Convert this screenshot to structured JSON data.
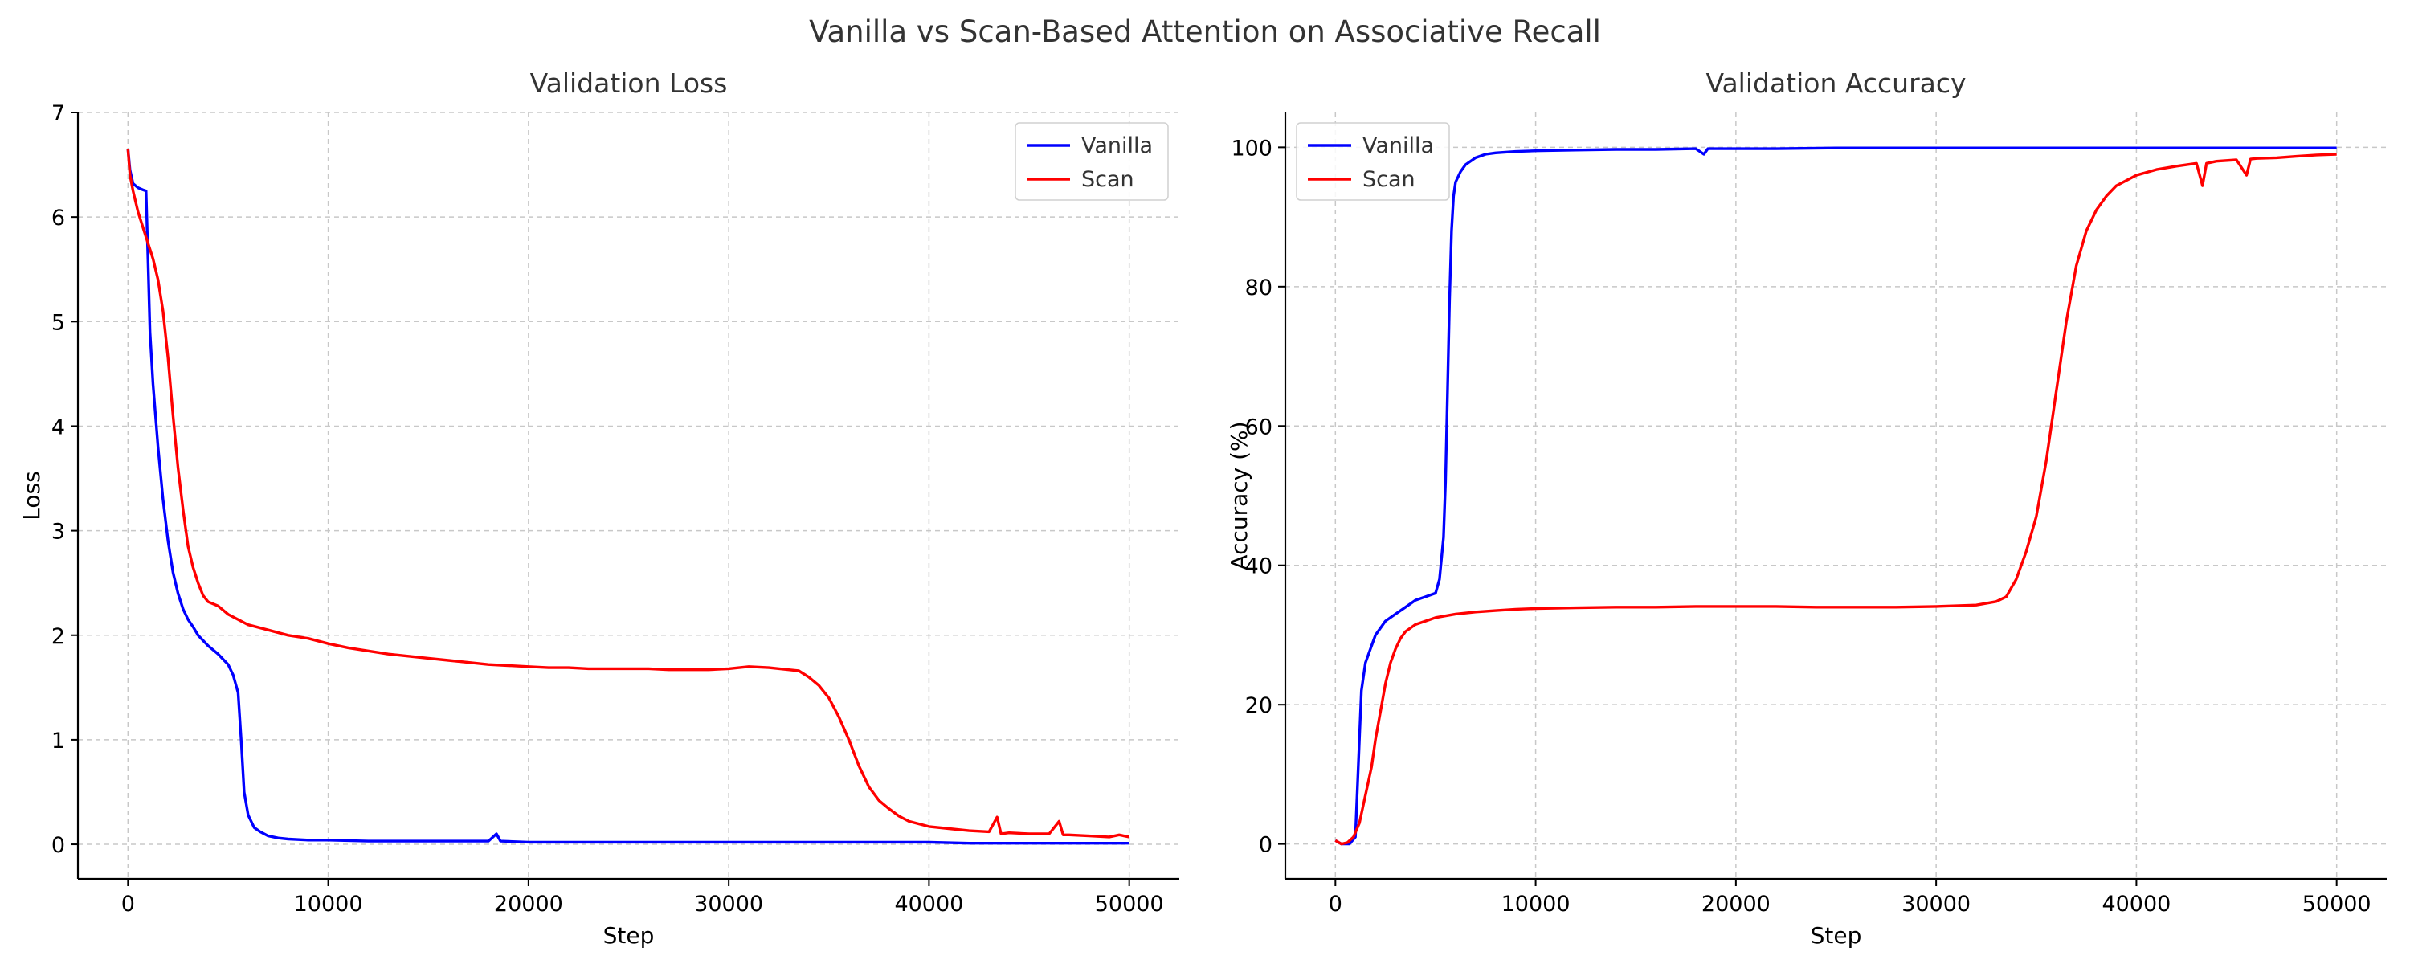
{
  "figure": {
    "suptitle": "Vanilla vs Scan-Based Attention on Associative Recall"
  },
  "colors": {
    "Vanilla": "#0000ff",
    "Scan": "#ff0000"
  },
  "chart_data": [
    {
      "type": "line",
      "title": "Validation Loss",
      "xlabel": "Step",
      "ylabel": "Loss",
      "xlim": [
        -2500,
        52500
      ],
      "ylim": [
        -0.33,
        7.0
      ],
      "xticks": [
        0,
        10000,
        20000,
        30000,
        40000,
        50000
      ],
      "yticks": [
        0,
        1,
        2,
        3,
        4,
        5,
        6,
        7
      ],
      "grid": true,
      "legend": "top-right",
      "series": [
        {
          "name": "Vanilla",
          "color": "#0000ff",
          "points": [
            [
              0,
              6.65
            ],
            [
              100,
              6.45
            ],
            [
              250,
              6.32
            ],
            [
              500,
              6.28
            ],
            [
              750,
              6.26
            ],
            [
              900,
              6.25
            ],
            [
              1000,
              5.6
            ],
            [
              1100,
              4.9
            ],
            [
              1250,
              4.4
            ],
            [
              1500,
              3.8
            ],
            [
              1750,
              3.3
            ],
            [
              2000,
              2.9
            ],
            [
              2250,
              2.6
            ],
            [
              2500,
              2.4
            ],
            [
              2750,
              2.25
            ],
            [
              3000,
              2.15
            ],
            [
              3250,
              2.08
            ],
            [
              3500,
              2.0
            ],
            [
              4000,
              1.9
            ],
            [
              4500,
              1.82
            ],
            [
              5000,
              1.72
            ],
            [
              5250,
              1.62
            ],
            [
              5500,
              1.45
            ],
            [
              5650,
              1.0
            ],
            [
              5800,
              0.5
            ],
            [
              6000,
              0.28
            ],
            [
              6300,
              0.16
            ],
            [
              6600,
              0.12
            ],
            [
              7000,
              0.08
            ],
            [
              7500,
              0.06
            ],
            [
              8000,
              0.05
            ],
            [
              9000,
              0.04
            ],
            [
              10000,
              0.04
            ],
            [
              12000,
              0.03
            ],
            [
              14000,
              0.03
            ],
            [
              16000,
              0.03
            ],
            [
              18000,
              0.03
            ],
            [
              18400,
              0.1
            ],
            [
              18600,
              0.03
            ],
            [
              20000,
              0.02
            ],
            [
              22000,
              0.02
            ],
            [
              25000,
              0.02
            ],
            [
              28000,
              0.02
            ],
            [
              30000,
              0.02
            ],
            [
              33000,
              0.02
            ],
            [
              35000,
              0.02
            ],
            [
              38000,
              0.02
            ],
            [
              40000,
              0.02
            ],
            [
              42000,
              0.01
            ],
            [
              45000,
              0.01
            ],
            [
              48000,
              0.01
            ],
            [
              50000,
              0.01
            ]
          ]
        },
        {
          "name": "Scan",
          "color": "#ff0000",
          "points": [
            [
              0,
              6.65
            ],
            [
              100,
              6.4
            ],
            [
              250,
              6.25
            ],
            [
              500,
              6.05
            ],
            [
              750,
              5.9
            ],
            [
              1000,
              5.75
            ],
            [
              1250,
              5.6
            ],
            [
              1500,
              5.4
            ],
            [
              1750,
              5.1
            ],
            [
              2000,
              4.65
            ],
            [
              2250,
              4.1
            ],
            [
              2500,
              3.6
            ],
            [
              2750,
              3.2
            ],
            [
              3000,
              2.85
            ],
            [
              3250,
              2.65
            ],
            [
              3500,
              2.5
            ],
            [
              3750,
              2.38
            ],
            [
              4000,
              2.32
            ],
            [
              4500,
              2.28
            ],
            [
              5000,
              2.2
            ],
            [
              6000,
              2.1
            ],
            [
              7000,
              2.05
            ],
            [
              8000,
              2.0
            ],
            [
              9000,
              1.97
            ],
            [
              10000,
              1.92
            ],
            [
              11000,
              1.88
            ],
            [
              12000,
              1.85
            ],
            [
              13000,
              1.82
            ],
            [
              14000,
              1.8
            ],
            [
              15000,
              1.78
            ],
            [
              16000,
              1.76
            ],
            [
              17000,
              1.74
            ],
            [
              18000,
              1.72
            ],
            [
              19000,
              1.71
            ],
            [
              20000,
              1.7
            ],
            [
              21000,
              1.69
            ],
            [
              22000,
              1.69
            ],
            [
              23000,
              1.68
            ],
            [
              24000,
              1.68
            ],
            [
              25000,
              1.68
            ],
            [
              26000,
              1.68
            ],
            [
              27000,
              1.67
            ],
            [
              28000,
              1.67
            ],
            [
              29000,
              1.67
            ],
            [
              30000,
              1.68
            ],
            [
              31000,
              1.7
            ],
            [
              32000,
              1.69
            ],
            [
              33000,
              1.67
            ],
            [
              33500,
              1.66
            ],
            [
              34000,
              1.6
            ],
            [
              34500,
              1.52
            ],
            [
              35000,
              1.4
            ],
            [
              35500,
              1.22
            ],
            [
              36000,
              1.0
            ],
            [
              36500,
              0.75
            ],
            [
              37000,
              0.55
            ],
            [
              37500,
              0.42
            ],
            [
              38000,
              0.34
            ],
            [
              38500,
              0.27
            ],
            [
              39000,
              0.22
            ],
            [
              40000,
              0.17
            ],
            [
              41000,
              0.15
            ],
            [
              42000,
              0.13
            ],
            [
              43000,
              0.12
            ],
            [
              43400,
              0.26
            ],
            [
              43600,
              0.1
            ],
            [
              44000,
              0.11
            ],
            [
              45000,
              0.1
            ],
            [
              46000,
              0.1
            ],
            [
              46500,
              0.22
            ],
            [
              46700,
              0.09
            ],
            [
              47000,
              0.09
            ],
            [
              48000,
              0.08
            ],
            [
              49000,
              0.07
            ],
            [
              49500,
              0.09
            ],
            [
              50000,
              0.07
            ]
          ]
        }
      ]
    },
    {
      "type": "line",
      "title": "Validation Accuracy",
      "xlabel": "Step",
      "ylabel": "Accuracy (%)",
      "xlim": [
        -2500,
        52500
      ],
      "ylim": [
        -5,
        105
      ],
      "xticks": [
        0,
        10000,
        20000,
        30000,
        40000,
        50000
      ],
      "yticks": [
        0,
        20,
        40,
        60,
        80,
        100
      ],
      "grid": true,
      "legend": "top-left",
      "series": [
        {
          "name": "Vanilla",
          "color": "#0000ff",
          "points": [
            [
              0,
              0.5
            ],
            [
              300,
              0
            ],
            [
              700,
              0
            ],
            [
              1000,
              1
            ],
            [
              1100,
              8
            ],
            [
              1200,
              15
            ],
            [
              1300,
              22
            ],
            [
              1500,
              26
            ],
            [
              1750,
              28
            ],
            [
              2000,
              30
            ],
            [
              2500,
              32
            ],
            [
              3000,
              33
            ],
            [
              3500,
              34
            ],
            [
              4000,
              35
            ],
            [
              4500,
              35.5
            ],
            [
              5000,
              36
            ],
            [
              5200,
              38
            ],
            [
              5400,
              44
            ],
            [
              5500,
              52
            ],
            [
              5600,
              65
            ],
            [
              5700,
              78
            ],
            [
              5800,
              88
            ],
            [
              5900,
              93
            ],
            [
              6000,
              95
            ],
            [
              6250,
              96.5
            ],
            [
              6500,
              97.5
            ],
            [
              7000,
              98.5
            ],
            [
              7500,
              99
            ],
            [
              8000,
              99.2
            ],
            [
              9000,
              99.4
            ],
            [
              10000,
              99.5
            ],
            [
              12000,
              99.6
            ],
            [
              14000,
              99.7
            ],
            [
              16000,
              99.7
            ],
            [
              18000,
              99.8
            ],
            [
              18400,
              99.0
            ],
            [
              18600,
              99.8
            ],
            [
              20000,
              99.8
            ],
            [
              22000,
              99.8
            ],
            [
              25000,
              99.9
            ],
            [
              28000,
              99.9
            ],
            [
              30000,
              99.9
            ],
            [
              33000,
              99.9
            ],
            [
              35000,
              99.9
            ],
            [
              38000,
              99.9
            ],
            [
              40000,
              99.9
            ],
            [
              42000,
              99.9
            ],
            [
              45000,
              99.9
            ],
            [
              48000,
              99.9
            ],
            [
              50000,
              99.9
            ]
          ]
        },
        {
          "name": "Scan",
          "color": "#ff0000",
          "points": [
            [
              0,
              0.5
            ],
            [
              300,
              0
            ],
            [
              600,
              0.2
            ],
            [
              900,
              1
            ],
            [
              1200,
              3
            ],
            [
              1500,
              7
            ],
            [
              1800,
              11
            ],
            [
              2000,
              15
            ],
            [
              2250,
              19
            ],
            [
              2500,
              23
            ],
            [
              2750,
              26
            ],
            [
              3000,
              28
            ],
            [
              3250,
              29.5
            ],
            [
              3500,
              30.5
            ],
            [
              4000,
              31.5
            ],
            [
              4500,
              32
            ],
            [
              5000,
              32.5
            ],
            [
              6000,
              33
            ],
            [
              7000,
              33.3
            ],
            [
              8000,
              33.5
            ],
            [
              9000,
              33.7
            ],
            [
              10000,
              33.8
            ],
            [
              12000,
              33.9
            ],
            [
              14000,
              34
            ],
            [
              16000,
              34
            ],
            [
              18000,
              34.1
            ],
            [
              20000,
              34.1
            ],
            [
              22000,
              34.1
            ],
            [
              24000,
              34
            ],
            [
              26000,
              34
            ],
            [
              28000,
              34
            ],
            [
              30000,
              34.1
            ],
            [
              32000,
              34.3
            ],
            [
              33000,
              34.8
            ],
            [
              33500,
              35.5
            ],
            [
              34000,
              38
            ],
            [
              34500,
              42
            ],
            [
              35000,
              47
            ],
            [
              35500,
              55
            ],
            [
              36000,
              65
            ],
            [
              36500,
              75
            ],
            [
              37000,
              83
            ],
            [
              37500,
              88
            ],
            [
              38000,
              91
            ],
            [
              38500,
              93
            ],
            [
              39000,
              94.5
            ],
            [
              40000,
              96
            ],
            [
              41000,
              96.8
            ],
            [
              42000,
              97.3
            ],
            [
              43000,
              97.7
            ],
            [
              43300,
              94.5
            ],
            [
              43500,
              97.7
            ],
            [
              44000,
              98
            ],
            [
              45000,
              98.2
            ],
            [
              45500,
              96
            ],
            [
              45700,
              98.3
            ],
            [
              46000,
              98.4
            ],
            [
              47000,
              98.5
            ],
            [
              48000,
              98.7
            ],
            [
              49000,
              98.9
            ],
            [
              50000,
              99
            ]
          ]
        }
      ]
    }
  ]
}
